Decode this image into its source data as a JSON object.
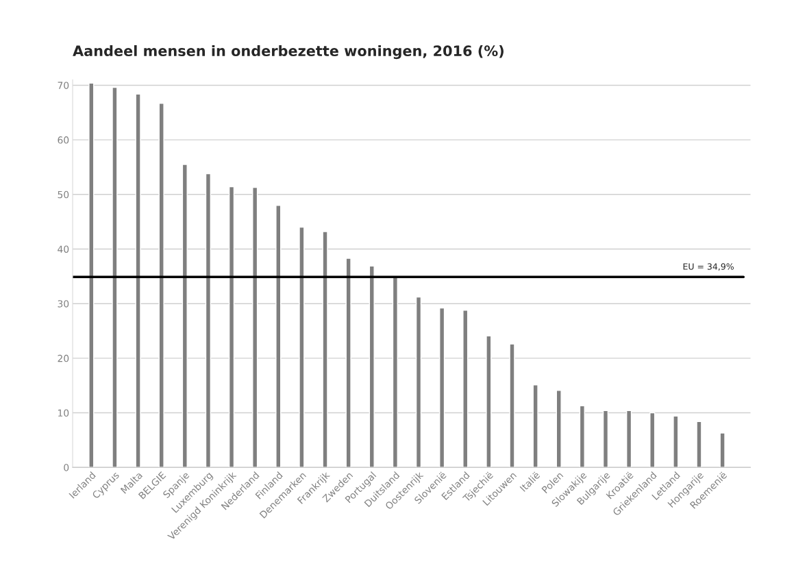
{
  "chart_data": {
    "type": "bar",
    "title": "Aandeel mensen in onderbezette woningen, 2016 (%)",
    "categories": [
      "Ierland",
      "Cyprus",
      "Malta",
      "BELGIE",
      "Spanje",
      "Luxemburg",
      "Verenigd Koninkrijk",
      "Nederland",
      "Finland",
      "Denemarken",
      "Frankrijk",
      "Zweden",
      "Portugal",
      "Duitsland",
      "Oostenrijk",
      "Slovenië",
      "Estland",
      "Tsjechië",
      "Litouwen",
      "Italië",
      "Polen",
      "Slowakije",
      "Bulgarije",
      "Kroatië",
      "Griekenland",
      "Letland",
      "Hongarije",
      "Roemenië"
    ],
    "values": [
      70.4,
      69.6,
      68.4,
      66.7,
      55.5,
      53.8,
      51.4,
      51.3,
      48.0,
      44.0,
      43.2,
      38.3,
      36.9,
      34.9,
      31.2,
      29.2,
      28.8,
      24.1,
      22.6,
      15.1,
      14.1,
      11.3,
      10.4,
      10.4,
      10.0,
      9.4,
      8.4,
      6.3
    ],
    "color": "#7f7f7f",
    "ylim": [
      0,
      71
    ],
    "yticks": [
      0,
      10,
      20,
      30,
      40,
      50,
      60,
      70
    ],
    "grid": "y",
    "ref_lines": [
      {
        "axis": "y",
        "value": 34.9,
        "label": "EU = 34,9%",
        "color": "#000000"
      }
    ]
  }
}
